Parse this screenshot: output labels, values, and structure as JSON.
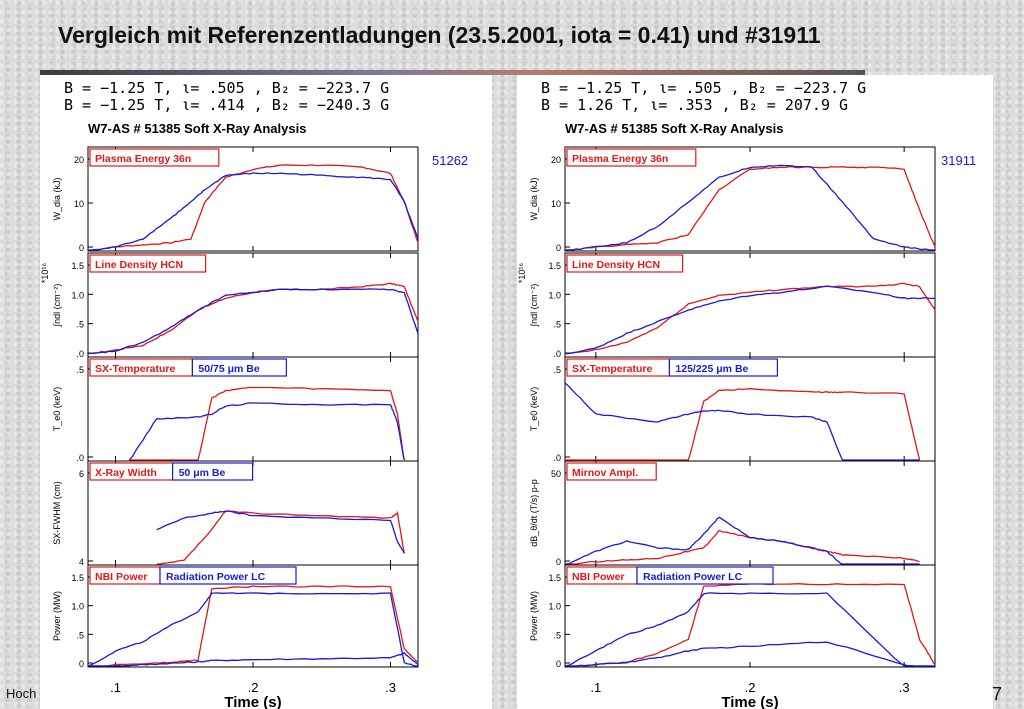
{
  "slide": {
    "title": "Vergleich mit Referenzentladungen (23.5.2001, iota = 0.41) und #31911",
    "footer_left": "Hoch",
    "page_number": "7"
  },
  "panels": [
    {
      "header_line1": "B = −1.25  T,  ι= .505    ,  B₂ = −223.7 G",
      "header_line2": "B = −1.25  T,  ι= .414    ,  B₂ = −240.3 G",
      "analysis_title": "W7-AS # 51385  Soft X-Ray Analysis",
      "shot_label": "51262",
      "xlabel": "Time (s)",
      "xticks": [
        ".1",
        ".2",
        ".3"
      ],
      "subplots": [
        {
          "ylabel": "W_dia (kJ)",
          "yticks": [
            "20",
            "10",
            "0"
          ],
          "box_red": "Plasma Energy  36n",
          "box_blue": ""
        },
        {
          "ylabel": "∫ndl (cm⁻²)",
          "yticks": [
            "1.5",
            "1.0",
            ".5",
            ".0"
          ],
          "exponent": "*10¹⁶",
          "box_red": "Line Density HCN",
          "box_blue": ""
        },
        {
          "ylabel": "T_e0 (keV)",
          "yticks": [
            ".5",
            ".0"
          ],
          "box_red": "SX-Temperature",
          "box_blue": "50/75  μm Be"
        },
        {
          "ylabel": "SX-FWHM (cm)",
          "yticks": [
            "6",
            "4"
          ],
          "box_red": "X-Ray Width",
          "box_blue": "50  μm Be"
        },
        {
          "ylabel": "Power (MW)",
          "yticks": [
            "1.5",
            "1.0",
            ".5",
            "0"
          ],
          "box_red": "NBI Power",
          "box_blue": "Radiation Power LC"
        }
      ]
    },
    {
      "header_line1": "B = −1.25  T,  ι= .505    ,  B₂ = −223.7 G",
      "header_line2": "B = 1.26    T,  ι= .353    ,  B₂ = 207.9  G",
      "analysis_title": "W7-AS # 51385  Soft X-Ray Analysis",
      "shot_label": "31911",
      "xlabel": "Time (s)",
      "xticks": [
        ".1",
        ".2",
        ".3"
      ],
      "subplots": [
        {
          "ylabel": "W_dia (kJ)",
          "yticks": [
            "20",
            "10",
            "0"
          ],
          "box_red": "Plasma Energy  36n",
          "box_blue": ""
        },
        {
          "ylabel": "∫ndl (cm⁻²)",
          "yticks": [
            "1.5",
            "1.0",
            ".5",
            ".0"
          ],
          "exponent": "*10¹⁶",
          "box_red": "Line Density HCN",
          "box_blue": ""
        },
        {
          "ylabel": "T_e0 (keV)",
          "yticks": [
            ".5",
            ".0"
          ],
          "box_red": "SX-Temperature",
          "box_blue": "125/225  μm Be"
        },
        {
          "ylabel": "dB_θ/dt (T/s) p-p",
          "yticks": [
            "50",
            "0"
          ],
          "box_red": "Mirnov Ampl.",
          "box_blue": ""
        },
        {
          "ylabel": "Power (MW)",
          "yticks": [
            "1.5",
            "1.0",
            ".5",
            "0"
          ],
          "box_red": "NBI Power",
          "box_blue": "Radiation Power LC"
        }
      ]
    }
  ],
  "colors": {
    "red": "#e01818",
    "blue": "#1a1ad8",
    "axis": "#000000",
    "box_bg": "#ffffff"
  },
  "chart_data": [
    {
      "type": "line",
      "title": "W7-AS # 51385  Soft X-Ray Analysis",
      "xlabel": "Time (s)",
      "xlim": [
        0.08,
        0.32
      ],
      "subplots": [
        {
          "name": "Plasma Energy 36n",
          "ylim": [
            0,
            23
          ],
          "x": [
            0.08,
            0.1,
            0.12,
            0.14,
            0.155,
            0.165,
            0.18,
            0.2,
            0.22,
            0.25,
            0.28,
            0.3,
            0.31,
            0.32
          ],
          "series": [
            {
              "name": "51385",
              "color": "red",
              "values": [
                0,
                1,
                1.5,
                2,
                3,
                12,
                18,
                20,
                21,
                21,
                20.5,
                19,
                12,
                2
              ]
            },
            {
              "name": "51262",
              "color": "blue",
              "values": [
                0,
                1,
                3,
                8,
                12,
                15,
                18.5,
                19,
                19,
                18.5,
                18,
                17.5,
                12,
                3
              ]
            }
          ]
        },
        {
          "name": "Line Density HCN",
          "ylim": [
            0,
            1.6
          ],
          "x": [
            0.08,
            0.1,
            0.12,
            0.14,
            0.16,
            0.18,
            0.2,
            0.22,
            0.25,
            0.28,
            0.3,
            0.31,
            0.32
          ],
          "series": [
            {
              "name": "51385",
              "color": "red",
              "values": [
                0.05,
                0.12,
                0.2,
                0.45,
                0.8,
                1.0,
                1.1,
                1.15,
                1.15,
                1.2,
                1.25,
                1.2,
                0.6
              ]
            },
            {
              "name": "51262",
              "color": "blue",
              "values": [
                0.05,
                0.1,
                0.25,
                0.5,
                0.8,
                1.05,
                1.1,
                1.15,
                1.15,
                1.15,
                1.15,
                1.1,
                0.4
              ]
            }
          ]
        },
        {
          "name": "SX-Temperature",
          "ylim": [
            0,
            0.6
          ],
          "x": [
            0.11,
            0.13,
            0.16,
            0.17,
            0.18,
            0.2,
            0.25,
            0.3,
            0.305,
            0.31
          ],
          "series": [
            {
              "name": "51385",
              "color": "red",
              "values": [
                0,
                0,
                0,
                0.4,
                0.45,
                0.47,
                0.46,
                0.45,
                0.3,
                0
              ]
            },
            {
              "name": "51262",
              "color": "blue",
              "values": [
                0,
                0.27,
                0.28,
                0.3,
                0.35,
                0.37,
                0.36,
                0.36,
                0.25,
                0
              ]
            }
          ]
        },
        {
          "name": "X-Ray Width",
          "ylim": [
            3,
            7
          ],
          "x": [
            0.13,
            0.15,
            0.17,
            0.18,
            0.2,
            0.25,
            0.3,
            0.305,
            0.31
          ],
          "series": [
            {
              "name": "51385",
              "color": "red",
              "values": [
                3,
                3.2,
                4.5,
                5.3,
                5.2,
                5.1,
                5.0,
                5.2,
                3.5
              ]
            },
            {
              "name": "51262",
              "color": "blue",
              "values": [
                4.5,
                5.0,
                5.2,
                5.3,
                5.1,
                5.0,
                4.9,
                4.0,
                3.5
              ]
            }
          ]
        },
        {
          "name": "NBI Power / Radiation Power LC",
          "ylim": [
            0,
            2
          ],
          "x": [
            0.08,
            0.1,
            0.12,
            0.14,
            0.16,
            0.17,
            0.2,
            0.25,
            0.3,
            0.31,
            0.32
          ],
          "series": [
            {
              "name": "NBI Power",
              "color": "red",
              "values": [
                0,
                0.05,
                0.07,
                0.1,
                0.15,
                1.7,
                1.75,
                1.75,
                1.75,
                0.4,
                0.1
              ]
            },
            {
              "name": "Radiation Power LC",
              "color": "blue",
              "values": [
                0,
                0.02,
                0.05,
                0.08,
                0.11,
                0.14,
                0.16,
                0.18,
                0.2,
                0.3,
                0.05
              ]
            },
            {
              "name": "NBI Power (51262)",
              "color": "blue",
              "values": [
                0,
                0.35,
                0.55,
                0.9,
                1.2,
                1.6,
                1.6,
                1.6,
                1.6,
                0.1,
                0
              ]
            }
          ]
        }
      ]
    },
    {
      "type": "line",
      "title": "W7-AS # 51385  Soft X-Ray Analysis",
      "xlabel": "Time (s)",
      "xlim": [
        0.08,
        0.32
      ],
      "subplots": [
        {
          "name": "Plasma Energy 36n",
          "ylim": [
            0,
            23
          ],
          "x": [
            0.08,
            0.1,
            0.12,
            0.14,
            0.16,
            0.18,
            0.2,
            0.22,
            0.24,
            0.26,
            0.28,
            0.3,
            0.31,
            0.32
          ],
          "series": [
            {
              "name": "51385",
              "color": "red",
              "values": [
                0,
                1,
                1.5,
                2,
                4,
                15,
                20,
                20.5,
                20.5,
                20.5,
                20.5,
                20,
                10,
                1
              ]
            },
            {
              "name": "31911",
              "color": "blue",
              "values": [
                0,
                1,
                2,
                6,
                12,
                18,
                20.5,
                21,
                20.5,
                12,
                3,
                1,
                0.5,
                0
              ]
            }
          ]
        },
        {
          "name": "Line Density HCN",
          "ylim": [
            0,
            1.6
          ],
          "x": [
            0.08,
            0.1,
            0.12,
            0.14,
            0.16,
            0.18,
            0.2,
            0.22,
            0.25,
            0.28,
            0.3,
            0.31,
            0.32
          ],
          "series": [
            {
              "name": "51385",
              "color": "red",
              "values": [
                0.05,
                0.12,
                0.25,
                0.5,
                0.9,
                1.05,
                1.1,
                1.15,
                1.2,
                1.2,
                1.25,
                1.2,
                0.8
              ]
            },
            {
              "name": "31911",
              "color": "blue",
              "values": [
                0.05,
                0.15,
                0.4,
                0.6,
                0.8,
                0.95,
                1.05,
                1.1,
                1.2,
                1.1,
                1.0,
                1.0,
                1.0
              ]
            }
          ]
        },
        {
          "name": "SX-Temperature",
          "ylim": [
            0,
            0.6
          ],
          "x": [
            0.08,
            0.1,
            0.14,
            0.16,
            0.17,
            0.18,
            0.2,
            0.24,
            0.25,
            0.26,
            0.3,
            0.31
          ],
          "series": [
            {
              "name": "51385",
              "color": "red",
              "values": [
                0,
                0,
                0,
                0,
                0.38,
                0.45,
                0.46,
                0.44,
                0.44,
                0.44,
                0.43,
                0
              ]
            },
            {
              "name": "31911",
              "color": "blue",
              "values": [
                0.5,
                0.3,
                0.25,
                0.3,
                0.32,
                0.32,
                0.3,
                0.28,
                0.25,
                0,
                0,
                0
              ]
            }
          ]
        },
        {
          "name": "Mirnov Ampl.",
          "ylim": [
            0,
            55
          ],
          "x": [
            0.08,
            0.1,
            0.12,
            0.14,
            0.16,
            0.17,
            0.18,
            0.2,
            0.22,
            0.24,
            0.25,
            0.26,
            0.28,
            0.3,
            0.31
          ],
          "series": [
            {
              "name": "51385",
              "color": "red",
              "values": [
                0,
                2,
                3,
                4,
                8,
                10,
                20,
                16,
                14,
                10,
                8,
                6,
                5,
                4,
                2
              ]
            },
            {
              "name": "31911",
              "color": "blue",
              "values": [
                0,
                8,
                14,
                10,
                9,
                18,
                28,
                16,
                14,
                10,
                8,
                0,
                0,
                0,
                0
              ]
            }
          ]
        },
        {
          "name": "NBI Power / Radiation Power LC",
          "ylim": [
            0,
            2
          ],
          "x": [
            0.08,
            0.1,
            0.12,
            0.14,
            0.16,
            0.17,
            0.2,
            0.25,
            0.3,
            0.31,
            0.32
          ],
          "series": [
            {
              "name": "NBI Power",
              "color": "red",
              "values": [
                0,
                0.05,
                0.1,
                0.3,
                0.6,
                1.75,
                1.8,
                1.8,
                1.8,
                0.6,
                0.05
              ]
            },
            {
              "name": "Radiation Power LC",
              "color": "blue",
              "values": [
                0,
                0.05,
                0.1,
                0.2,
                0.35,
                0.4,
                0.45,
                0.55,
                0.05,
                0,
                0
              ]
            },
            {
              "name": "NBI Power (31911)",
              "color": "blue",
              "values": [
                0,
                0.35,
                0.7,
                0.9,
                1.2,
                1.6,
                1.6,
                1.6,
                0,
                0,
                0
              ]
            }
          ]
        }
      ]
    }
  ]
}
